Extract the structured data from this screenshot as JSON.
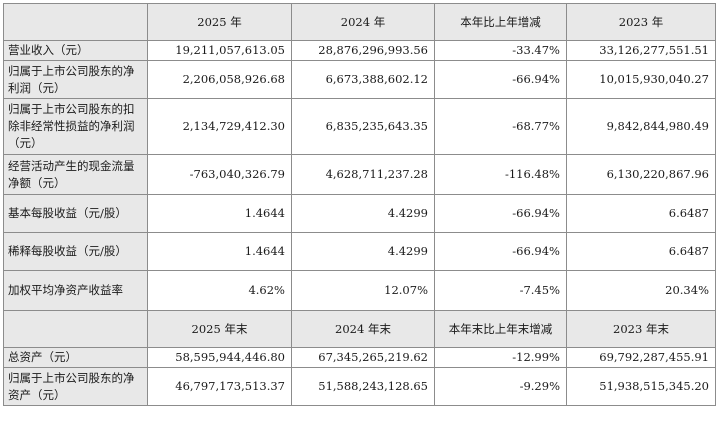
{
  "header1": {
    "c1": "2025 年",
    "c2": "2024 年",
    "c3": "本年比上年增减",
    "c4": "2023 年"
  },
  "header2": {
    "c1": "2025 年末",
    "c2": "2024 年末",
    "c3": "本年末比上年末增减",
    "c4": "2023 年末"
  },
  "rows": [
    {
      "label": "营业收入（元）",
      "v2025": "19,211,057,613.05",
      "v2024": "28,876,296,993.56",
      "change": "-33.47%",
      "v2023": "33,126,277,551.51"
    },
    {
      "label": "归属于上市公司股东的净利润（元）",
      "v2025": "2,206,058,926.68",
      "v2024": "6,673,388,602.12",
      "change": "-66.94%",
      "v2023": "10,015,930,040.27"
    },
    {
      "label": "归属于上市公司股东的扣除非经常性损益的净利润（元）",
      "v2025": "2,134,729,412.30",
      "v2024": "6,835,235,643.35",
      "change": "-68.77%",
      "v2023": "9,842,844,980.49"
    },
    {
      "label": "经营活动产生的现金流量净额（元）",
      "v2025": "-763,040,326.79",
      "v2024": "4,628,711,237.28",
      "change": "-116.48%",
      "v2023": "6,130,220,867.96"
    },
    {
      "label": "基本每股收益（元/股）",
      "v2025": "1.4644",
      "v2024": "4.4299",
      "change": "-66.94%",
      "v2023": "6.6487"
    },
    {
      "label": "稀释每股收益（元/股）",
      "v2025": "1.4644",
      "v2024": "4.4299",
      "change": "-66.94%",
      "v2023": "6.6487"
    },
    {
      "label": "加权平均净资产收益率",
      "v2025": "4.62%",
      "v2024": "12.07%",
      "change": "-7.45%",
      "v2023": "20.34%"
    }
  ],
  "rows2": [
    {
      "label": "总资产（元）",
      "v2025": "58,595,944,446.80",
      "v2024": "67,345,265,219.62",
      "change": "-12.99%",
      "v2023": "69,792,287,455.91"
    },
    {
      "label": "归属于上市公司股东的净资产（元）",
      "v2025": "46,797,173,513.37",
      "v2024": "51,588,243,128.65",
      "change": "-9.29%",
      "v2023": "51,938,515,345.20"
    }
  ]
}
